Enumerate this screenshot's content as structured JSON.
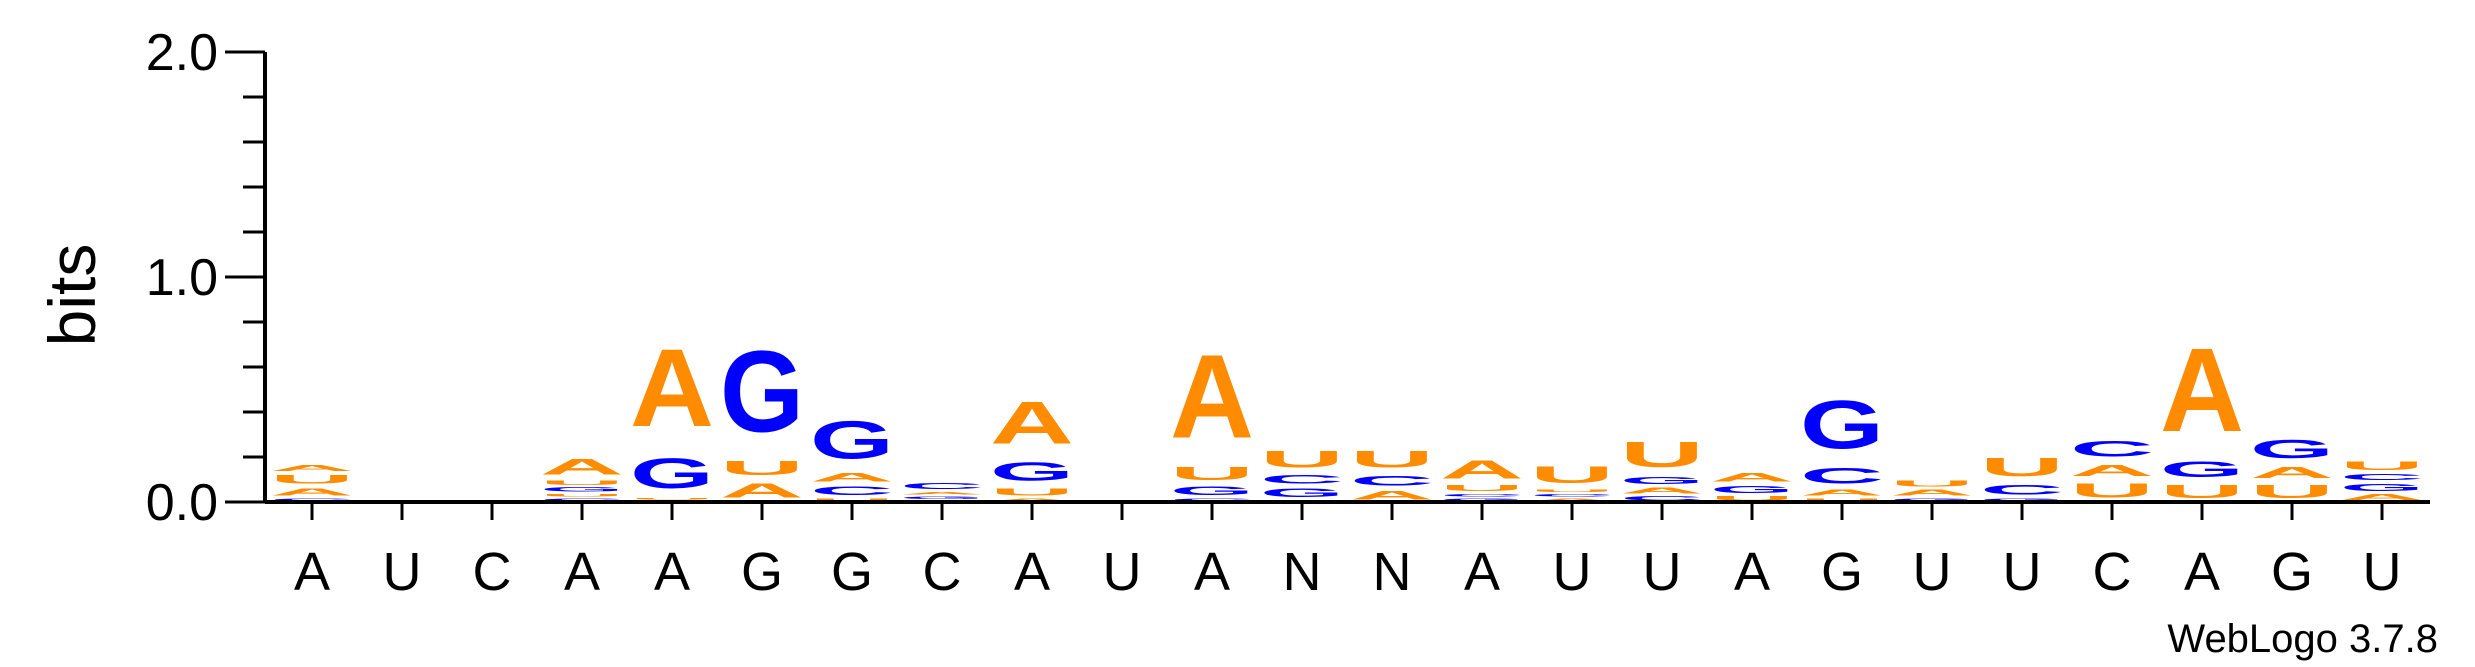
{
  "chart_data": {
    "type": "sequence-logo",
    "title": "",
    "xlabel": "",
    "ylabel": "bits",
    "ylim": [
      0,
      2.0
    ],
    "yticks": [
      "0.0",
      "1.0",
      "2.0"
    ],
    "positions": [
      "A",
      "U",
      "C",
      "A",
      "A",
      "G",
      "G",
      "C",
      "A",
      "U",
      "A",
      "N",
      "N",
      "A",
      "U",
      "U",
      "A",
      "G",
      "U",
      "U",
      "C",
      "A",
      "G",
      "U"
    ],
    "colors": {
      "A": "#ff8c00",
      "U": "#ff8c00",
      "G": "#0000ff",
      "C": "#0000ff"
    },
    "stacks": [
      [
        [
          "C",
          0.02
        ],
        [
          "A",
          0.05
        ],
        [
          "U",
          0.06
        ],
        [
          "A",
          0.04
        ]
      ],
      [],
      [],
      [
        [
          "C",
          0.02
        ],
        [
          "U",
          0.02
        ],
        [
          "G",
          0.03
        ],
        [
          "U",
          0.03
        ],
        [
          "A",
          0.11
        ]
      ],
      [
        [
          "C",
          0.01
        ],
        [
          "U",
          0.01
        ],
        [
          "G",
          0.21
        ],
        [
          "A",
          0.55
        ]
      ],
      [
        [
          "A",
          0.1
        ],
        [
          "U",
          0.1
        ],
        [
          "G",
          0.58
        ]
      ],
      [
        [
          "U",
          0.02
        ],
        [
          "C",
          0.06
        ],
        [
          "A",
          0.06
        ],
        [
          "G",
          0.27
        ]
      ],
      [
        [
          "U",
          0.01
        ],
        [
          "G",
          0.02
        ],
        [
          "A",
          0.02
        ],
        [
          "C",
          0.04
        ]
      ],
      [
        [
          "A",
          0.02
        ],
        [
          "U",
          0.05
        ],
        [
          "G",
          0.13
        ],
        [
          "A",
          0.3
        ]
      ],
      [],
      [
        [
          "C",
          0.02
        ],
        [
          "G",
          0.06
        ],
        [
          "U",
          0.09
        ],
        [
          "A",
          0.59
        ]
      ],
      [
        [
          "A",
          0.01
        ],
        [
          "G",
          0.06
        ],
        [
          "C",
          0.06
        ],
        [
          "U",
          0.12
        ]
      ],
      [
        [
          "A",
          0.06
        ],
        [
          "C",
          0.07
        ],
        [
          "U",
          0.12
        ]
      ],
      [
        [
          "G",
          0.02
        ],
        [
          "C",
          0.02
        ],
        [
          "U",
          0.04
        ],
        [
          "A",
          0.13
        ]
      ],
      [
        [
          "A",
          0.02
        ],
        [
          "C",
          0.02
        ],
        [
          "U",
          0.02
        ],
        [
          "U",
          0.12
        ]
      ],
      [
        [
          "C",
          0.03
        ],
        [
          "A",
          0.04
        ],
        [
          "G",
          0.05
        ],
        [
          "U",
          0.18
        ]
      ],
      [
        [
          "U",
          0.03
        ],
        [
          "G",
          0.05
        ],
        [
          "A",
          0.06
        ]
      ],
      [
        [
          "U",
          0.02
        ],
        [
          "A",
          0.04
        ],
        [
          "C",
          0.11
        ],
        [
          "G",
          0.34
        ]
      ],
      [
        [
          "G",
          0.02
        ],
        [
          "A",
          0.04
        ],
        [
          "U",
          0.04
        ]
      ],
      [
        [
          "G",
          0.02
        ],
        [
          "C",
          0.07
        ],
        [
          "U",
          0.13
        ]
      ],
      [
        [
          "U",
          0.1
        ],
        [
          "A",
          0.08
        ],
        [
          "C",
          0.11
        ]
      ],
      [
        [
          "U",
          0.09
        ],
        [
          "G",
          0.11
        ],
        [
          "A",
          0.59
        ]
      ],
      [
        [
          "U",
          0.09
        ],
        [
          "A",
          0.08
        ],
        [
          "G",
          0.13
        ]
      ],
      [
        [
          "A",
          0.04
        ],
        [
          "G",
          0.05
        ],
        [
          "C",
          0.04
        ],
        [
          "U",
          0.06
        ]
      ]
    ],
    "credit": "WebLogo 3.7.8"
  }
}
